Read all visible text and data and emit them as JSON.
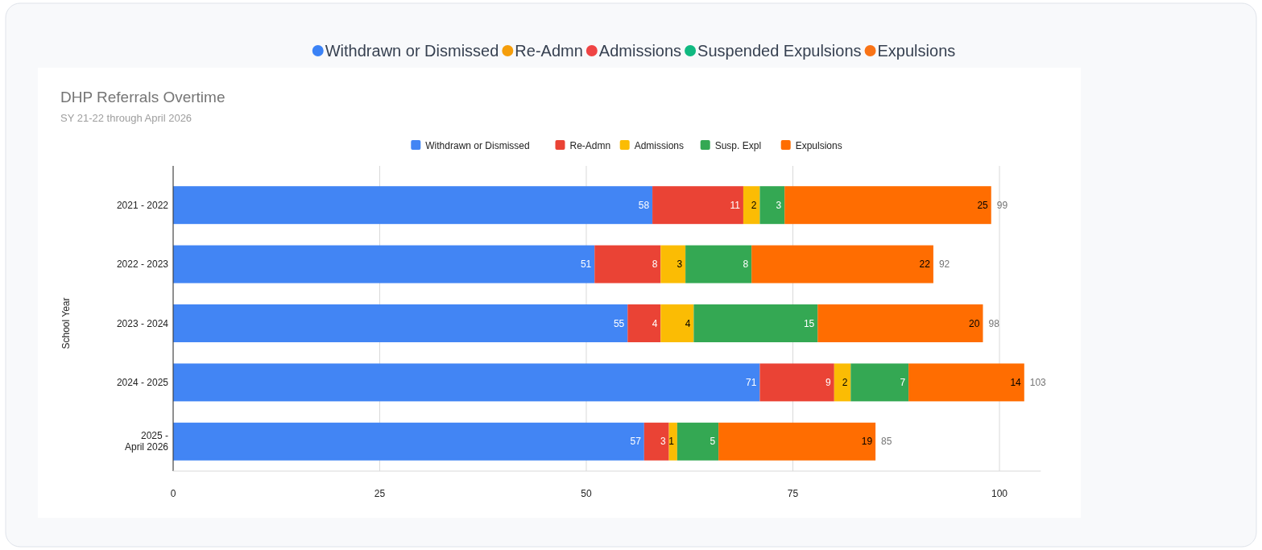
{
  "chart_data": {
    "type": "bar",
    "orientation": "horizontal",
    "stacked": true,
    "title": "DHP Referrals Overtime",
    "subtitle": "SY 21-22 through April 2026",
    "ylabel": "School Year",
    "annotations": [
      "Withdrawn or Dismissed",
      "Re-Admn",
      "Admissions",
      "Suspended Expulsions",
      "Expulsions"
    ],
    "categories": [
      "2021 - 2022",
      "2022 - 2023",
      "2023 - 2024",
      "2024 - 2025",
      "2025 - April 2026"
    ],
    "series": [
      {
        "name": "Withdrawn or Dismissed",
        "color": "#4285f4",
        "values": [
          58,
          51,
          55,
          71,
          57
        ]
      },
      {
        "name": "Re-Admn",
        "color": "#ea4335",
        "values": [
          11,
          8,
          4,
          9,
          3
        ]
      },
      {
        "name": "Admissions",
        "color": "#fbbc04",
        "values": [
          2,
          3,
          4,
          2,
          1
        ]
      },
      {
        "name": "Susp. Expl",
        "color": "#34a853",
        "values": [
          3,
          8,
          15,
          7,
          5
        ]
      },
      {
        "name": "Expulsions",
        "color": "#ff6d01",
        "values": [
          25,
          22,
          20,
          14,
          19
        ]
      }
    ],
    "totals": [
      "99",
      "92",
      "98",
      "103",
      "85"
    ],
    "data_labels": true,
    "xlim": [
      0,
      105
    ],
    "xticks": [
      0,
      25,
      50,
      75,
      100
    ],
    "grid": "x",
    "legend": "top"
  }
}
